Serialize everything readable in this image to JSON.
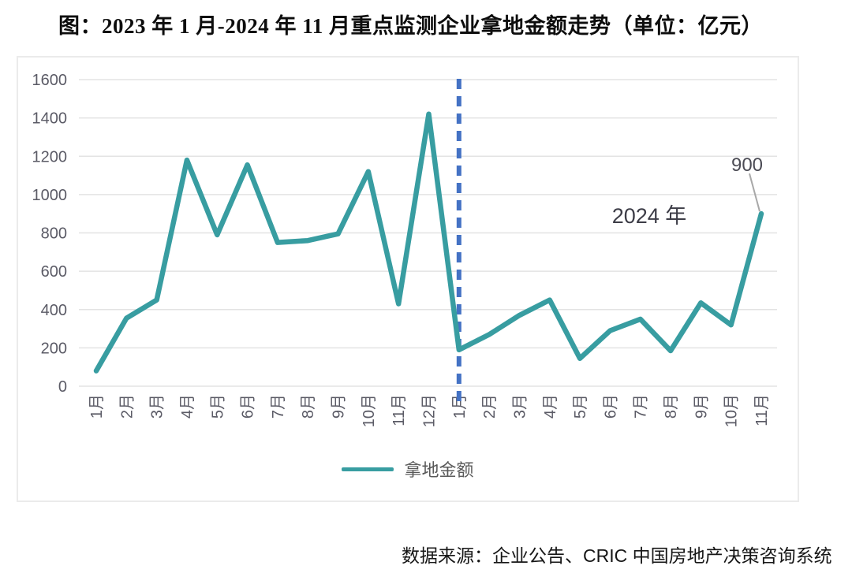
{
  "title": "图：2023 年 1 月-2024 年 11 月重点监测企业拿地金额走势（单位：亿元）",
  "source": "数据来源：企业公告、CRIC 中国房地产决策咨询系统",
  "legend": {
    "label": "拿地金额"
  },
  "annotations": {
    "period_label": "2024 年",
    "endpoint_label": "900"
  },
  "colors": {
    "line": "#389da1",
    "divider": "#4472c4",
    "grid": "#e3e3e3",
    "axis_text": "#5b5b66",
    "callout_line": "#a8a8a8",
    "frame_border": "#ebebeb"
  },
  "chart_data": {
    "type": "line",
    "title": "2023年1月-2024年11月重点监测企业拿地金额走势",
    "ylabel": "亿元",
    "x": [
      "1月",
      "2月",
      "3月",
      "4月",
      "5月",
      "6月",
      "7月",
      "8月",
      "9月",
      "10月",
      "11月",
      "12月",
      "1月",
      "2月",
      "3月",
      "4月",
      "5月",
      "6月",
      "7月",
      "8月",
      "9月",
      "10月",
      "11月"
    ],
    "series": [
      {
        "name": "拿地金额",
        "values": [
          80,
          355,
          450,
          1180,
          790,
          1155,
          750,
          760,
          795,
          1120,
          430,
          1420,
          190,
          270,
          370,
          450,
          145,
          290,
          350,
          185,
          435,
          320,
          900
        ]
      }
    ],
    "ylim": [
      0,
      1600
    ],
    "ytick_interval": 200,
    "yticks": [
      0,
      200,
      400,
      600,
      800,
      1000,
      1200,
      1400,
      1600
    ],
    "grid": true,
    "legend_position": "bottom",
    "divider_index": 12,
    "endpoint_callout": {
      "index": 22,
      "value": 900,
      "label": "900"
    }
  }
}
